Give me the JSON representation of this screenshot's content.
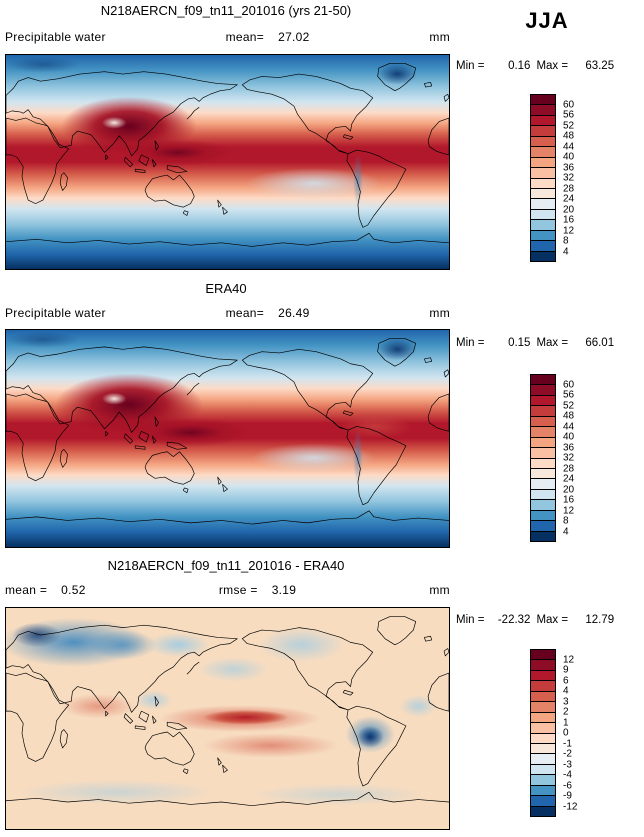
{
  "season_label": "JJA",
  "panels": [
    {
      "title": "N218AERCN_f09_tn11_201016 (yrs 21-50)",
      "field_label": "Precipitable water",
      "mean_label": "mean=",
      "mean": "27.02",
      "units": "mm",
      "min_label": "Min =",
      "min": "0.16",
      "max_label": "Max =",
      "max": "63.25"
    },
    {
      "title": "ERA40",
      "field_label": "Precipitable water",
      "mean_label": "mean=",
      "mean": "26.49",
      "units": "mm",
      "min_label": "Min =",
      "min": "0.15",
      "max_label": "Max =",
      "max": "66.01"
    },
    {
      "title": "N218AERCN_f09_tn11_201016 - ERA40",
      "mean_label": "mean =",
      "mean": "0.52",
      "rmse_label": "rmse =",
      "rmse": "3.19",
      "units": "mm",
      "min_label": "Min =",
      "min": "-22.32",
      "max_label": "Max =",
      "max": "12.79"
    }
  ],
  "chart_data": [
    {
      "type": "heatmap",
      "subtype": "filled-contour world map, cylindrical equidistant, 0E at left edge",
      "title": "N218AERCN_f09_tn11_201016 (yrs 21-50)",
      "variable": "Precipitable water",
      "season": "JJA",
      "units": "mm",
      "stats": {
        "mean": 27.02,
        "min": 0.16,
        "max": 63.25
      },
      "levels": [
        4,
        8,
        12,
        16,
        20,
        24,
        28,
        32,
        36,
        40,
        44,
        48,
        52,
        56,
        60
      ],
      "palette_high_to_low": [
        "#67001f",
        "#8c0d25",
        "#b2182b",
        "#c43c3c",
        "#d6604d",
        "#e58368",
        "#f4a582",
        "#f9c0a4",
        "#fddbc7",
        "#f8e8dc",
        "#e7eef3",
        "#d1e5f0",
        "#92c5de",
        "#4393c3",
        "#2166ac",
        "#053061"
      ],
      "pattern_summary": "High values (red, 40-60 mm) in a broad tropical band peaking over South/Southeast Asia and the west Pacific warm pool; low values (blue, <12 mm) poleward of 45 degrees, darkest over Antarctica and Greenland; dry tongue over the southeast Pacific."
    },
    {
      "type": "heatmap",
      "subtype": "filled-contour world map, cylindrical equidistant, 0E at left edge",
      "title": "ERA40",
      "variable": "Precipitable water",
      "season": "JJA",
      "units": "mm",
      "stats": {
        "mean": 26.49,
        "min": 0.15,
        "max": 66.01
      },
      "levels": [
        4,
        8,
        12,
        16,
        20,
        24,
        28,
        32,
        36,
        40,
        44,
        48,
        52,
        56,
        60
      ],
      "palette_high_to_low": [
        "#67001f",
        "#8c0d25",
        "#b2182b",
        "#c43c3c",
        "#d6604d",
        "#e58368",
        "#f4a582",
        "#f9c0a4",
        "#fddbc7",
        "#f8e8dc",
        "#e7eef3",
        "#d1e5f0",
        "#92c5de",
        "#4393c3",
        "#2166ac",
        "#053061"
      ],
      "pattern_summary": "Reanalysis field closely matching the model: tropical red band slightly broader, maxima over Indian monsoon region and west Pacific; blue polar regions."
    },
    {
      "type": "heatmap",
      "subtype": "difference map (model minus reanalysis)",
      "title": "N218AERCN_f09_tn11_201016 - ERA40",
      "variable": "Precipitable water difference",
      "season": "JJA",
      "units": "mm",
      "stats": {
        "mean": 0.52,
        "rmse": 3.19,
        "min": -22.32,
        "max": 12.79
      },
      "levels": [
        -12,
        -9,
        -6,
        -4,
        -3,
        -2,
        -1,
        0,
        1,
        2,
        3,
        4,
        6,
        9,
        12
      ],
      "palette_high_to_low": [
        "#67001f",
        "#8c0d25",
        "#b2182b",
        "#c43c3c",
        "#d6604d",
        "#e58368",
        "#f4a582",
        "#f9c0a4",
        "#fddbc7",
        "#f8e8dc",
        "#e7eef3",
        "#d1e5f0",
        "#92c5de",
        "#4393c3",
        "#2166ac",
        "#053061"
      ],
      "pattern_summary": "Mostly weak positive bias (pale orange) over the oceans; wet bias (red) along the equatorial and south Pacific; dry bias (blue) over northern Eurasia, parts of North America and a strong dry anomaly over tropical South America."
    }
  ]
}
